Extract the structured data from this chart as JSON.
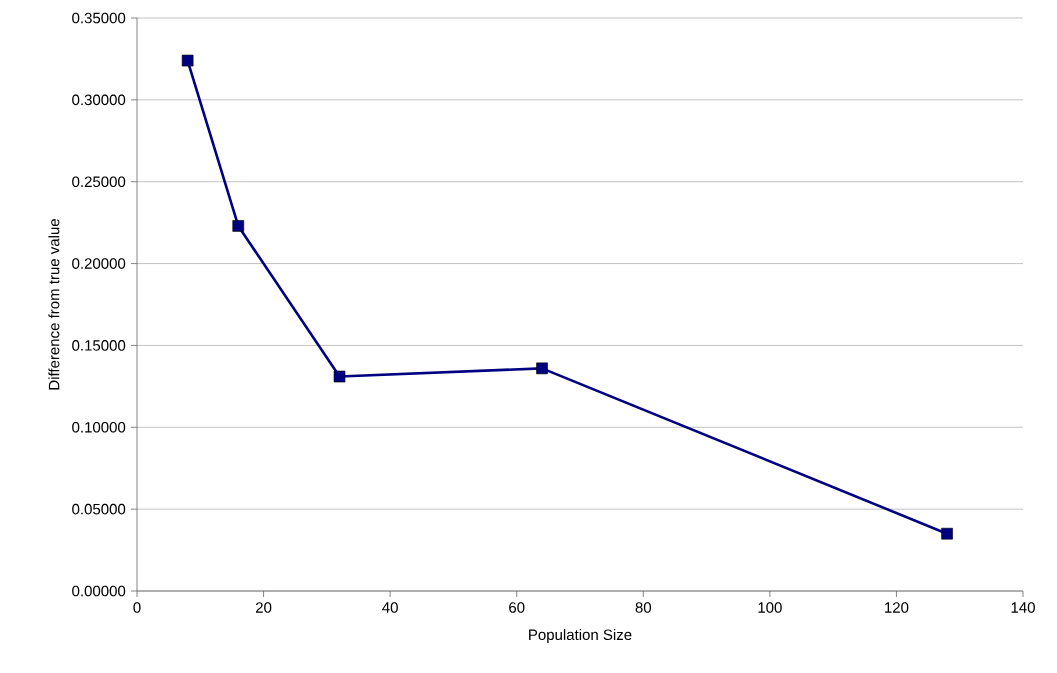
{
  "chart_data": {
    "type": "line",
    "xlabel": "Population Size",
    "ylabel": "Difference from true value",
    "x": [
      8,
      16,
      32,
      64,
      128
    ],
    "series": [
      {
        "color": "#000080",
        "values": [
          0.324,
          0.223,
          0.131,
          0.136,
          0.035
        ]
      }
    ],
    "xlim": [
      0,
      140
    ],
    "xticks": [
      0,
      20,
      40,
      60,
      80,
      100,
      120,
      140
    ],
    "ylim": [
      0,
      0.35
    ],
    "yticks": [
      {
        "value": 0,
        "label": "0.00000"
      },
      {
        "value": 0.05,
        "label": "0.05000"
      },
      {
        "value": 0.1,
        "label": "0.10000"
      },
      {
        "value": 0.15,
        "label": "0.15000"
      },
      {
        "value": 0.2,
        "label": "0.20000"
      },
      {
        "value": 0.25,
        "label": "0.25000"
      },
      {
        "value": 0.3,
        "label": "0.30000"
      },
      {
        "value": 0.35,
        "label": "0.35000"
      }
    ],
    "grid": "y",
    "marker": "square",
    "line_style": "solid"
  }
}
